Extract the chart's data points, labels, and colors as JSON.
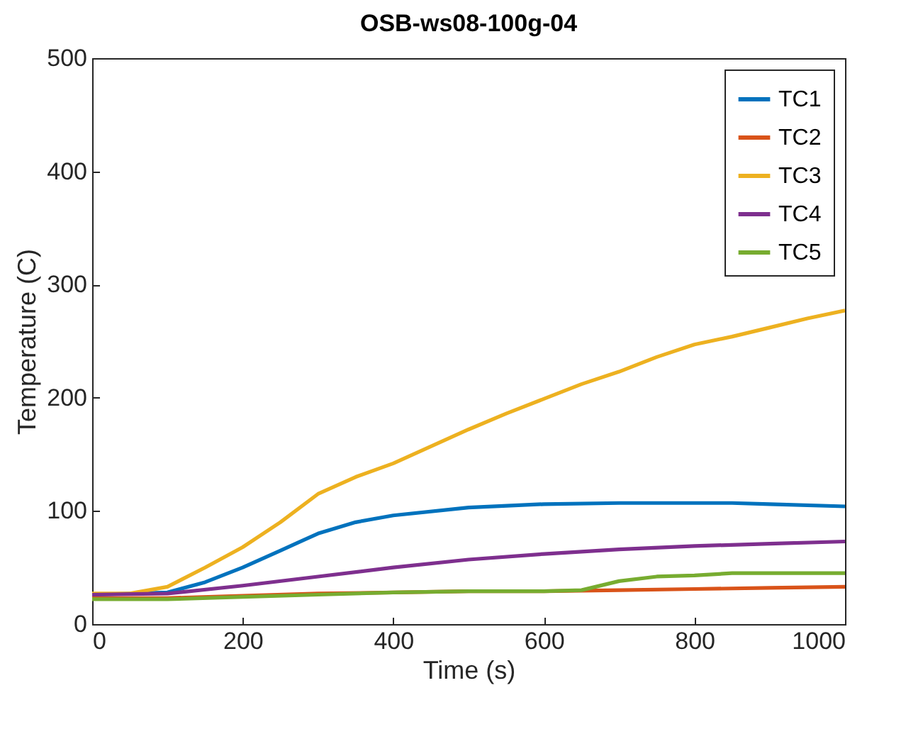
{
  "chart_data": {
    "type": "line",
    "title": "OSB-ws08-100g-04",
    "xlabel": "Time (s)",
    "ylabel": "Temperature (C)",
    "xlim": [
      0,
      1000
    ],
    "xticks": [
      0,
      200,
      400,
      600,
      800,
      1000
    ],
    "ylim": [
      0,
      500
    ],
    "yticks": [
      0,
      100,
      200,
      300,
      400,
      500
    ],
    "grid": false,
    "legend": "top right",
    "line_style": "solid",
    "series": [
      {
        "name": "TC1",
        "color": "#0072bd",
        "x": [
          0,
          100,
          150,
          200,
          250,
          300,
          350,
          400,
          500,
          600,
          700,
          800,
          850,
          900,
          1000
        ],
        "values": [
          26,
          28,
          37,
          50,
          65,
          80,
          90,
          96,
          103,
          106,
          107,
          107,
          107,
          106,
          104
        ]
      },
      {
        "name": "TC2",
        "color": "#d95319",
        "x": [
          0,
          100,
          200,
          300,
          400,
          500,
          600,
          700,
          800,
          900,
          1000
        ],
        "values": [
          23,
          23,
          25,
          27,
          28,
          29,
          29,
          30,
          31,
          32,
          33
        ]
      },
      {
        "name": "TC3",
        "color": "#edb120",
        "x": [
          0,
          50,
          100,
          150,
          200,
          250,
          300,
          350,
          400,
          450,
          500,
          550,
          600,
          650,
          700,
          750,
          800,
          850,
          900,
          950,
          1000
        ],
        "values": [
          27,
          27,
          33,
          50,
          68,
          90,
          115,
          130,
          142,
          157,
          172,
          186,
          199,
          212,
          223,
          236,
          247,
          254,
          262,
          270,
          277
        ]
      },
      {
        "name": "TC4",
        "color": "#7e2f8e",
        "x": [
          0,
          100,
          200,
          300,
          400,
          500,
          600,
          700,
          800,
          900,
          1000
        ],
        "values": [
          26,
          27,
          34,
          42,
          50,
          57,
          62,
          66,
          69,
          71,
          73
        ]
      },
      {
        "name": "TC5",
        "color": "#77ac30",
        "x": [
          0,
          100,
          200,
          300,
          400,
          500,
          600,
          650,
          700,
          750,
          800,
          850,
          900,
          1000
        ],
        "values": [
          22,
          22,
          24,
          26,
          28,
          29,
          29,
          30,
          38,
          42,
          43,
          45,
          45,
          45
        ]
      }
    ]
  }
}
